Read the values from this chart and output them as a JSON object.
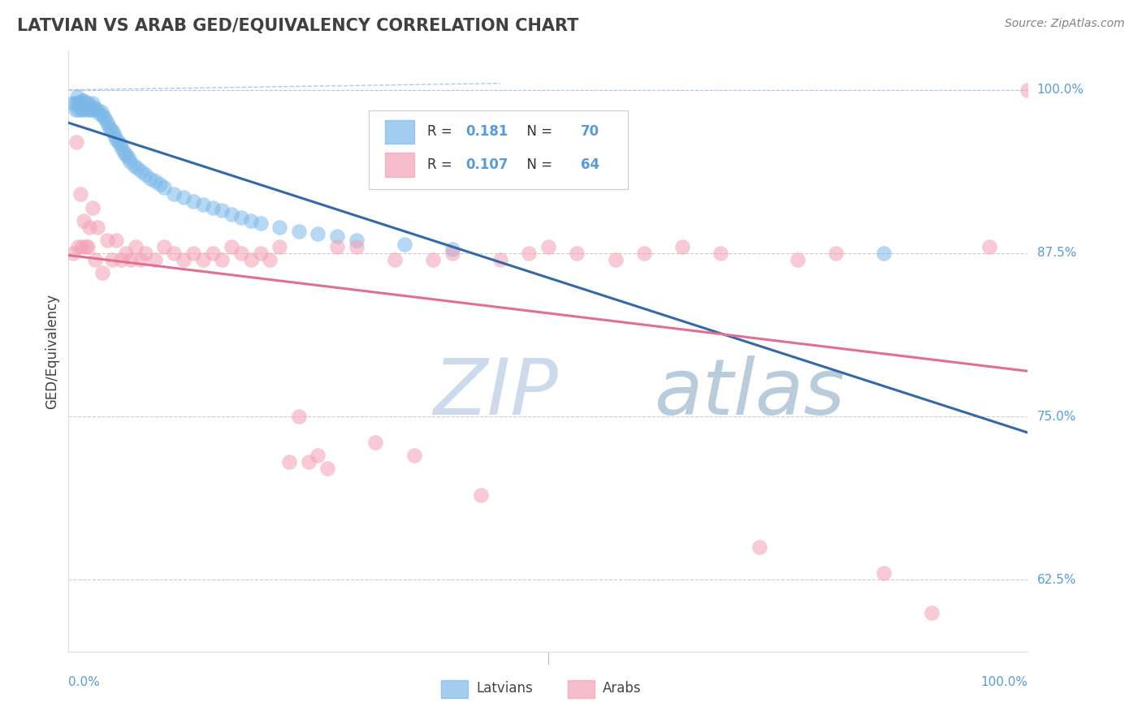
{
  "title": "LATVIAN VS ARAB GED/EQUIVALENCY CORRELATION CHART",
  "source": "Source: ZipAtlas.com",
  "ylabel": "GED/Equivalency",
  "ytick_vals": [
    0.625,
    0.75,
    0.875,
    1.0
  ],
  "ytick_labels": [
    "62.5%",
    "75.0%",
    "87.5%",
    "100.0%"
  ],
  "legend_latvians": "Latvians",
  "legend_arabs": "Arabs",
  "R_latvian": 0.181,
  "N_latvian": 70,
  "R_arab": 0.107,
  "N_arab": 64,
  "latvian_color": "#7bb8e8",
  "arab_color": "#f4a0b5",
  "latvian_line_color": "#3468a8",
  "arab_line_color": "#e07090",
  "dashed_line_color": "#b0c8e8",
  "background_color": "#ffffff",
  "watermark_zip_color": "#ccdaec",
  "watermark_atlas_color": "#b8ccdc",
  "title_color": "#404040",
  "ylabel_color": "#404040",
  "tick_label_color": "#5b9bd5",
  "source_color": "#808080",
  "xlim": [
    0.0,
    1.0
  ],
  "ylim": [
    0.57,
    1.03
  ],
  "latvian_x": [
    0.005,
    0.007,
    0.008,
    0.009,
    0.01,
    0.01,
    0.011,
    0.012,
    0.013,
    0.013,
    0.014,
    0.014,
    0.015,
    0.015,
    0.016,
    0.016,
    0.017,
    0.018,
    0.019,
    0.02,
    0.022,
    0.022,
    0.024,
    0.025,
    0.026,
    0.028,
    0.03,
    0.032,
    0.034,
    0.036,
    0.038,
    0.04,
    0.042,
    0.044,
    0.046,
    0.048,
    0.05,
    0.052,
    0.054,
    0.056,
    0.058,
    0.06,
    0.062,
    0.064,
    0.068,
    0.072,
    0.076,
    0.08,
    0.085,
    0.09,
    0.095,
    0.1,
    0.11,
    0.12,
    0.13,
    0.14,
    0.15,
    0.16,
    0.17,
    0.18,
    0.19,
    0.2,
    0.22,
    0.24,
    0.26,
    0.28,
    0.3,
    0.35,
    0.4,
    0.85
  ],
  "latvian_y": [
    0.99,
    0.985,
    0.99,
    0.995,
    0.99,
    0.985,
    0.99,
    0.99,
    0.985,
    0.99,
    0.988,
    0.992,
    0.99,
    0.985,
    0.992,
    0.988,
    0.987,
    0.988,
    0.985,
    0.99,
    0.988,
    0.985,
    0.985,
    0.99,
    0.987,
    0.985,
    0.985,
    0.982,
    0.983,
    0.98,
    0.978,
    0.975,
    0.972,
    0.97,
    0.968,
    0.965,
    0.962,
    0.96,
    0.958,
    0.955,
    0.952,
    0.95,
    0.948,
    0.945,
    0.942,
    0.94,
    0.938,
    0.935,
    0.932,
    0.93,
    0.928,
    0.925,
    0.92,
    0.918,
    0.915,
    0.912,
    0.91,
    0.908,
    0.905,
    0.902,
    0.9,
    0.898,
    0.895,
    0.892,
    0.89,
    0.888,
    0.885,
    0.882,
    0.878,
    0.875
  ],
  "arab_x": [
    0.005,
    0.008,
    0.01,
    0.012,
    0.014,
    0.016,
    0.018,
    0.02,
    0.022,
    0.025,
    0.028,
    0.03,
    0.035,
    0.04,
    0.045,
    0.05,
    0.055,
    0.06,
    0.065,
    0.07,
    0.075,
    0.08,
    0.09,
    0.1,
    0.11,
    0.12,
    0.13,
    0.14,
    0.15,
    0.16,
    0.17,
    0.18,
    0.19,
    0.2,
    0.21,
    0.22,
    0.23,
    0.24,
    0.25,
    0.26,
    0.27,
    0.28,
    0.3,
    0.32,
    0.34,
    0.36,
    0.38,
    0.4,
    0.43,
    0.45,
    0.48,
    0.5,
    0.53,
    0.57,
    0.6,
    0.64,
    0.68,
    0.72,
    0.76,
    0.8,
    0.85,
    0.9,
    0.96,
    1.0
  ],
  "arab_y": [
    0.875,
    0.96,
    0.88,
    0.92,
    0.88,
    0.9,
    0.88,
    0.88,
    0.895,
    0.91,
    0.87,
    0.895,
    0.86,
    0.885,
    0.87,
    0.885,
    0.87,
    0.875,
    0.87,
    0.88,
    0.87,
    0.875,
    0.87,
    0.88,
    0.875,
    0.87,
    0.875,
    0.87,
    0.875,
    0.87,
    0.88,
    0.875,
    0.87,
    0.875,
    0.87,
    0.88,
    0.715,
    0.75,
    0.715,
    0.72,
    0.71,
    0.88,
    0.88,
    0.73,
    0.87,
    0.72,
    0.87,
    0.875,
    0.69,
    0.87,
    0.875,
    0.88,
    0.875,
    0.87,
    0.875,
    0.88,
    0.875,
    0.65,
    0.87,
    0.875,
    0.63,
    0.6,
    0.88,
    1.0
  ]
}
